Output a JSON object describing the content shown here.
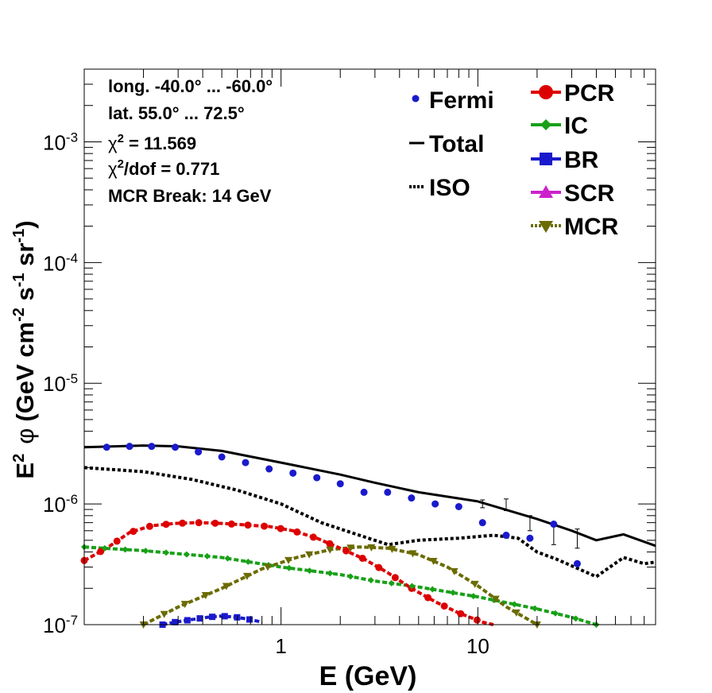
{
  "chart_data": {
    "type": "line",
    "xscale": "log",
    "yscale": "log",
    "xlim": [
      0.1,
      80
    ],
    "ylim": [
      1e-07,
      0.004
    ],
    "xlabel": "E (GeV)",
    "ylabel": {
      "e_base": "E",
      "e_exp": "2",
      "phi": "φ",
      "open": "(GeV cm",
      "cm_exp": "-2",
      "s": " s",
      "s_exp": "-1",
      "sr": " sr",
      "sr_exp": "-1",
      "close": ")"
    },
    "xtick_labels": [
      {
        "value": 1,
        "label": "1"
      },
      {
        "value": 10,
        "label": "10"
      }
    ],
    "ytick_labels": [
      {
        "value": 1e-07,
        "base": "10",
        "exp": "-7"
      },
      {
        "value": 1e-06,
        "base": "10",
        "exp": "-6"
      },
      {
        "value": 1e-05,
        "base": "10",
        "exp": "-5"
      },
      {
        "value": 0.0001,
        "base": "10",
        "exp": "-4"
      },
      {
        "value": 0.001,
        "base": "10",
        "exp": "-3"
      }
    ],
    "annotations": {
      "line1": "long. -40.0° ... -60.0°",
      "line2": "lat. 55.0° ... 72.5°",
      "chi_symbol": "χ",
      "chi_exp": "2",
      "chi_value": " = 11.569",
      "chidof_value": "/dof = 0.771",
      "mcr_break": "MCR Break: 14 GeV"
    },
    "legend_left": {
      "fermi": "Fermi",
      "total": "Total",
      "iso": "ISO"
    },
    "legend_right": {
      "pcr": "PCR",
      "ic": "IC",
      "br": "BR",
      "scr": "SCR",
      "mcr": "MCR"
    },
    "colors": {
      "fermi": "#1a1acc",
      "total": "#000000",
      "iso": "#000000",
      "pcr": "#dd0000",
      "ic": "#18a018",
      "br": "#1a1acc",
      "scr": "#cc22cc",
      "mcr": "#6b6b00"
    },
    "series": [
      {
        "name": "Fermi",
        "x": [
          0.13,
          0.17,
          0.22,
          0.29,
          0.38,
          0.5,
          0.66,
          0.87,
          1.15,
          1.52,
          2.0,
          2.64,
          3.48,
          4.6,
          6.07,
          8.0,
          10.56,
          13.93,
          18.4,
          24.3,
          32.0,
          42.2,
          55.7,
          73.5
        ],
        "y": [
          2.95e-06,
          3e-06,
          3e-06,
          2.95e-06,
          2.7e-06,
          2.45e-06,
          2.2e-06,
          1.95e-06,
          1.8e-06,
          1.65e-06,
          1.47e-06,
          1.25e-06,
          1.25e-06,
          1.12e-06,
          1e-06,
          9.5e-07,
          7e-07,
          5.5e-07,
          5.2e-07,
          6.8e-07,
          3.2e-07,
          null,
          null,
          null
        ],
        "yerr_lo": [
          null,
          null,
          null,
          null,
          null,
          null,
          null,
          null,
          null,
          null,
          null,
          null,
          null,
          null,
          null,
          null,
          null,
          null,
          null,
          null,
          null,
          null,
          null,
          null
        ],
        "note": "errors shown for the highest-energy points"
      },
      {
        "name": "Total",
        "x": [
          0.1,
          0.2,
          0.3,
          0.5,
          1,
          2,
          3,
          5,
          10,
          20,
          30,
          40,
          55,
          80
        ],
        "y": [
          2.95e-06,
          3.05e-06,
          3e-06,
          2.75e-06,
          2.2e-06,
          1.75e-06,
          1.5e-06,
          1.25e-06,
          1.05e-06,
          7.5e-07,
          6e-07,
          5e-07,
          5.6e-07,
          4.5e-07
        ]
      },
      {
        "name": "ISO",
        "x": [
          0.1,
          0.2,
          0.35,
          0.6,
          1,
          1.6,
          2.5,
          3.5,
          5,
          8,
          12,
          16,
          20,
          25,
          40,
          55,
          70,
          80
        ],
        "y": [
          2e-06,
          1.85e-06,
          1.6e-06,
          1.3e-06,
          1e-06,
          7e-07,
          5.5e-07,
          4.6e-07,
          5e-07,
          5.2e-07,
          5.5e-07,
          5.2e-07,
          4e-07,
          3.5e-07,
          2.5e-07,
          3.6e-07,
          3.2e-07,
          3.3e-07
        ]
      },
      {
        "name": "PCR",
        "x": [
          0.1,
          0.13,
          0.17,
          0.22,
          0.29,
          0.38,
          0.5,
          0.66,
          0.87,
          1.15,
          1.52,
          2.0,
          2.64,
          3.48,
          4.6,
          6.07,
          8.0,
          10.56,
          12.0
        ],
        "y": [
          3.4e-07,
          4.3e-07,
          5.8e-07,
          6.6e-07,
          6.9e-07,
          7e-07,
          6.9e-07,
          6.7e-07,
          6.5e-07,
          6e-07,
          5.2e-07,
          4.3e-07,
          3.5e-07,
          2.7e-07,
          2e-07,
          1.55e-07,
          1.25e-07,
          1.05e-07,
          1e-07
        ]
      },
      {
        "name": "IC",
        "x": [
          0.1,
          0.2,
          0.5,
          1,
          2,
          3,
          5,
          10,
          20,
          30,
          40
        ],
        "y": [
          4.4e-07,
          4.1e-07,
          3.6e-07,
          3e-07,
          2.6e-07,
          2.3e-07,
          2.05e-07,
          1.7e-07,
          1.35e-07,
          1.15e-07,
          1e-07
        ]
      },
      {
        "name": "BR",
        "x": [
          0.25,
          0.29,
          0.35,
          0.42,
          0.5,
          0.6,
          0.7,
          0.8
        ],
        "y": [
          1e-07,
          1.05e-07,
          1.1e-07,
          1.15e-07,
          1.18e-07,
          1.15e-07,
          1.1e-07,
          1.05e-07
        ]
      },
      {
        "name": "SCR",
        "x": [],
        "y": []
      },
      {
        "name": "MCR",
        "x": [
          0.2,
          0.3,
          0.5,
          0.8,
          1.2,
          1.8,
          2.5,
          3.5,
          5,
          7,
          10,
          14,
          20
        ],
        "y": [
          1e-07,
          1.4e-07,
          2e-07,
          2.9e-07,
          3.6e-07,
          4.2e-07,
          4.4e-07,
          4.3e-07,
          3.8e-07,
          3e-07,
          2.1e-07,
          1.4e-07,
          1e-07
        ]
      }
    ]
  }
}
